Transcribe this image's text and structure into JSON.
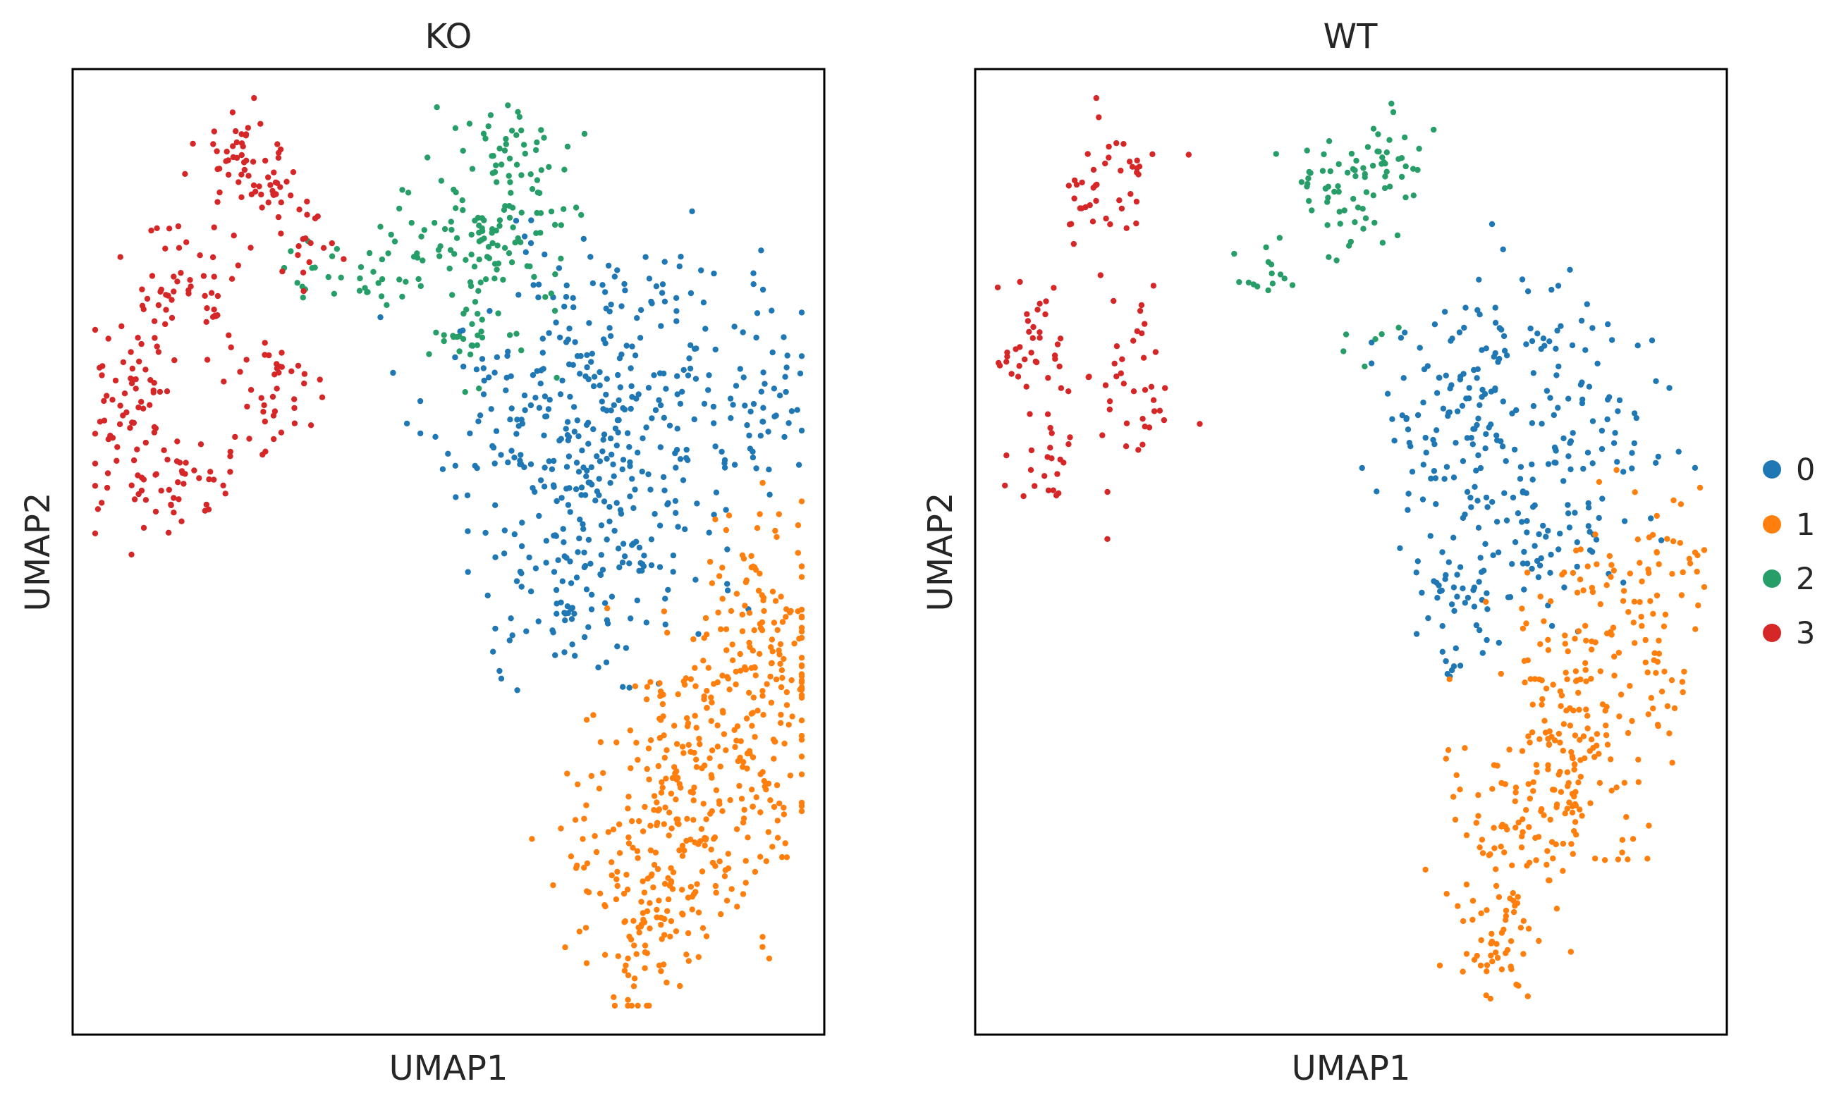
{
  "chart_data": [
    {
      "type": "scatter",
      "title": "KO",
      "xlabel": "UMAP1",
      "ylabel": "UMAP2",
      "ticks": "none",
      "grid": false,
      "series": [
        {
          "name": "0",
          "color": "#1f77b4",
          "clusters": [
            {
              "cx": 0.72,
              "cy": 0.73,
              "sx": 0.085,
              "sy": 0.05,
              "n": 100
            },
            {
              "cx": 0.65,
              "cy": 0.64,
              "sx": 0.09,
              "sy": 0.06,
              "n": 150
            },
            {
              "cx": 0.74,
              "cy": 0.57,
              "sx": 0.08,
              "sy": 0.06,
              "n": 110
            },
            {
              "cx": 0.68,
              "cy": 0.49,
              "sx": 0.075,
              "sy": 0.05,
              "n": 100
            },
            {
              "cx": 0.93,
              "cy": 0.67,
              "sx": 0.035,
              "sy": 0.045,
              "n": 40
            },
            {
              "cx": 0.64,
              "cy": 0.42,
              "sx": 0.04,
              "sy": 0.03,
              "n": 15
            }
          ]
        },
        {
          "name": "1",
          "color": "#ff7f0e",
          "clusters": [
            {
              "cx": 0.92,
              "cy": 0.44,
              "sx": 0.045,
              "sy": 0.07,
              "n": 90
            },
            {
              "cx": 0.88,
              "cy": 0.32,
              "sx": 0.07,
              "sy": 0.07,
              "n": 170
            },
            {
              "cx": 0.79,
              "cy": 0.22,
              "sx": 0.08,
              "sy": 0.06,
              "n": 170
            },
            {
              "cx": 0.76,
              "cy": 0.12,
              "sx": 0.045,
              "sy": 0.045,
              "n": 70
            },
            {
              "cx": 0.74,
              "cy": 0.05,
              "sx": 0.02,
              "sy": 0.02,
              "n": 10
            }
          ]
        },
        {
          "name": "2",
          "color": "#279e68",
          "clusters": [
            {
              "cx": 0.55,
              "cy": 0.82,
              "sx": 0.06,
              "sy": 0.05,
              "n": 120
            },
            {
              "cx": 0.38,
              "cy": 0.79,
              "sx": 0.05,
              "sy": 0.02,
              "n": 35
            },
            {
              "cx": 0.58,
              "cy": 0.92,
              "sx": 0.04,
              "sy": 0.025,
              "n": 35
            },
            {
              "cx": 0.51,
              "cy": 0.72,
              "sx": 0.02,
              "sy": 0.02,
              "n": 20
            }
          ]
        },
        {
          "name": "3",
          "color": "#d62728",
          "clusters": [
            {
              "cx": 0.23,
              "cy": 0.9,
              "sx": 0.035,
              "sy": 0.025,
              "n": 55
            },
            {
              "cx": 0.16,
              "cy": 0.78,
              "sx": 0.04,
              "sy": 0.04,
              "n": 55
            },
            {
              "cx": 0.08,
              "cy": 0.65,
              "sx": 0.03,
              "sy": 0.06,
              "n": 65
            },
            {
              "cx": 0.14,
              "cy": 0.57,
              "sx": 0.05,
              "sy": 0.02,
              "n": 45
            },
            {
              "cx": 0.26,
              "cy": 0.66,
              "sx": 0.03,
              "sy": 0.04,
              "n": 40
            },
            {
              "cx": 0.31,
              "cy": 0.84,
              "sx": 0.03,
              "sy": 0.03,
              "n": 25
            }
          ]
        }
      ]
    },
    {
      "type": "scatter",
      "title": "WT",
      "xlabel": "UMAP1",
      "ylabel": "UMAP2",
      "ticks": "none",
      "grid": false,
      "series": [
        {
          "name": "0",
          "color": "#1f77b4",
          "clusters": [
            {
              "cx": 0.7,
              "cy": 0.71,
              "sx": 0.07,
              "sy": 0.05,
              "n": 80
            },
            {
              "cx": 0.66,
              "cy": 0.61,
              "sx": 0.07,
              "sy": 0.05,
              "n": 90
            },
            {
              "cx": 0.74,
              "cy": 0.52,
              "sx": 0.065,
              "sy": 0.045,
              "n": 80
            },
            {
              "cx": 0.64,
              "cy": 0.45,
              "sx": 0.035,
              "sy": 0.035,
              "n": 30
            },
            {
              "cx": 0.85,
              "cy": 0.63,
              "sx": 0.04,
              "sy": 0.05,
              "n": 40
            },
            {
              "cx": 0.64,
              "cy": 0.38,
              "sx": 0.01,
              "sy": 0.015,
              "n": 6
            }
          ]
        },
        {
          "name": "1",
          "color": "#ff7f0e",
          "clusters": [
            {
              "cx": 0.88,
              "cy": 0.48,
              "sx": 0.05,
              "sy": 0.04,
              "n": 60
            },
            {
              "cx": 0.82,
              "cy": 0.36,
              "sx": 0.06,
              "sy": 0.06,
              "n": 130
            },
            {
              "cx": 0.75,
              "cy": 0.24,
              "sx": 0.055,
              "sy": 0.05,
              "n": 120
            },
            {
              "cx": 0.7,
              "cy": 0.13,
              "sx": 0.03,
              "sy": 0.04,
              "n": 50
            },
            {
              "cx": 0.7,
              "cy": 0.06,
              "sx": 0.02,
              "sy": 0.02,
              "n": 15
            }
          ]
        },
        {
          "name": "2",
          "color": "#279e68",
          "clusters": [
            {
              "cx": 0.49,
              "cy": 0.87,
              "sx": 0.04,
              "sy": 0.03,
              "n": 55
            },
            {
              "cx": 0.57,
              "cy": 0.91,
              "sx": 0.03,
              "sy": 0.02,
              "n": 25
            },
            {
              "cx": 0.38,
              "cy": 0.79,
              "sx": 0.03,
              "sy": 0.02,
              "n": 15
            },
            {
              "cx": 0.52,
              "cy": 0.72,
              "sx": 0.02,
              "sy": 0.02,
              "n": 6
            }
          ]
        },
        {
          "name": "3",
          "color": "#d62728",
          "clusters": [
            {
              "cx": 0.16,
              "cy": 0.87,
              "sx": 0.03,
              "sy": 0.035,
              "n": 30
            },
            {
              "cx": 0.08,
              "cy": 0.7,
              "sx": 0.03,
              "sy": 0.045,
              "n": 40
            },
            {
              "cx": 0.21,
              "cy": 0.68,
              "sx": 0.035,
              "sy": 0.05,
              "n": 40
            },
            {
              "cx": 0.1,
              "cy": 0.59,
              "sx": 0.03,
              "sy": 0.025,
              "n": 20
            },
            {
              "cx": 0.22,
              "cy": 0.9,
              "sx": 0.03,
              "sy": 0.025,
              "n": 15
            }
          ]
        }
      ]
    }
  ],
  "legend": {
    "placement": "right",
    "items": [
      {
        "label": "0",
        "color": "#1f77b4"
      },
      {
        "label": "1",
        "color": "#ff7f0e"
      },
      {
        "label": "2",
        "color": "#279e68"
      },
      {
        "label": "3",
        "color": "#d62728"
      }
    ]
  }
}
